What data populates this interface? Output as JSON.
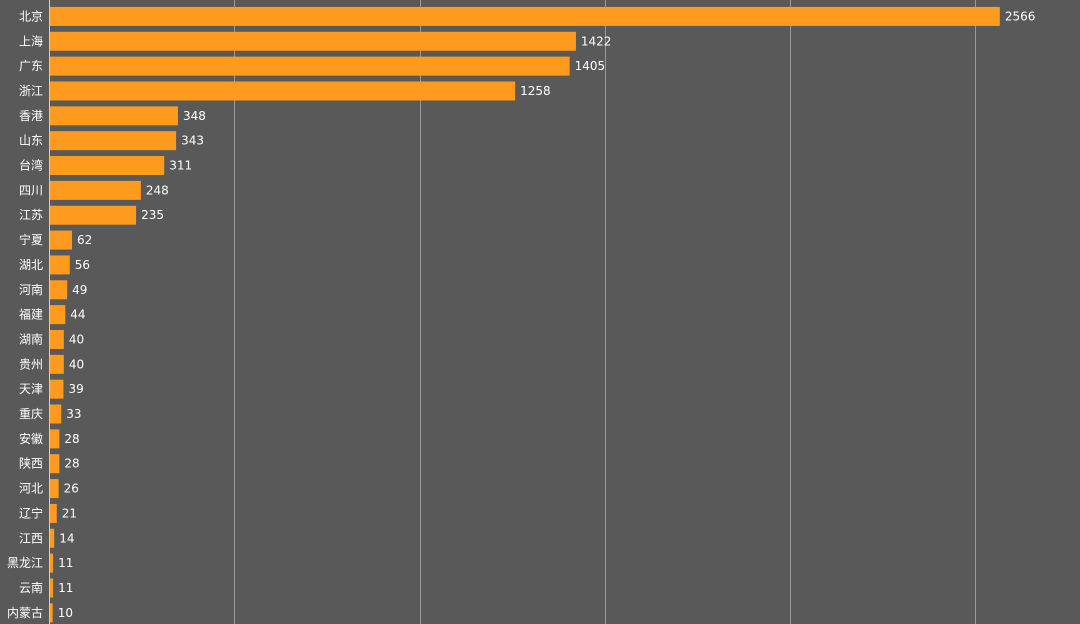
{
  "chart_data": {
    "type": "bar",
    "orientation": "horizontal",
    "categories": [
      "北京",
      "上海",
      "广东",
      "浙江",
      "香港",
      "山东",
      "台湾",
      "四川",
      "江苏",
      "宁夏",
      "湖北",
      "河南",
      "福建",
      "湖南",
      "贵州",
      "天津",
      "重庆",
      "安徽",
      "陕西",
      "河北",
      "辽宁",
      "江西",
      "黑龙江",
      "云南",
      "内蒙古"
    ],
    "values": [
      2566,
      1422,
      1405,
      1258,
      348,
      343,
      311,
      248,
      235,
      62,
      56,
      49,
      44,
      40,
      40,
      39,
      33,
      28,
      28,
      26,
      21,
      14,
      11,
      11,
      10
    ],
    "xlim": [
      0,
      2750
    ],
    "grid": true,
    "bar_color": "#fe9a1e",
    "background_color": "#595959",
    "text_color": "#ffffff",
    "grid_color": "#9a9a9a"
  }
}
